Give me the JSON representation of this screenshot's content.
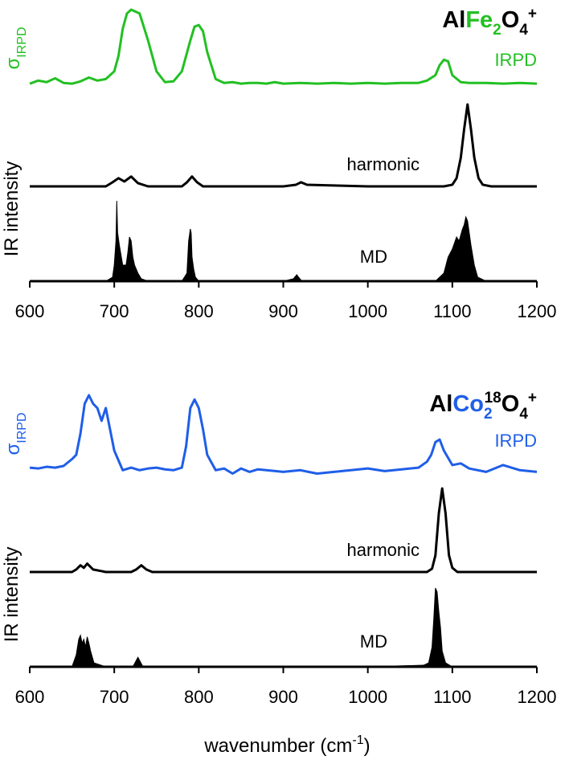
{
  "chart_data": [
    {
      "type": "line",
      "title_parts": [
        "Al",
        "Fe",
        "2",
        "O",
        "4",
        "+"
      ],
      "ylabel_parts": [
        "σ",
        "IRPD"
      ],
      "ylabel": "IR intensity",
      "xlim": [
        600,
        1200
      ],
      "xticks": [
        600,
        700,
        800,
        900,
        1000,
        1100,
        1200
      ],
      "series": [
        {
          "name": "IRPD",
          "color": "#22c022",
          "style": "line",
          "x": [
            600,
            610,
            620,
            630,
            640,
            650,
            660,
            670,
            680,
            690,
            700,
            705,
            710,
            715,
            720,
            730,
            740,
            750,
            760,
            770,
            780,
            790,
            795,
            800,
            805,
            810,
            820,
            830,
            840,
            850,
            860,
            870,
            880,
            890,
            900,
            920,
            940,
            960,
            980,
            1000,
            1020,
            1040,
            1060,
            1070,
            1080,
            1085,
            1090,
            1095,
            1100,
            1110,
            1120,
            1140,
            1160,
            1180,
            1200
          ],
          "values": [
            0.04,
            0.08,
            0.06,
            0.11,
            0.05,
            0.04,
            0.07,
            0.12,
            0.08,
            0.1,
            0.2,
            0.4,
            0.75,
            0.95,
            1.0,
            0.95,
            0.6,
            0.2,
            0.06,
            0.07,
            0.2,
            0.6,
            0.78,
            0.8,
            0.72,
            0.45,
            0.1,
            0.05,
            0.06,
            0.04,
            0.05,
            0.05,
            0.04,
            0.06,
            0.04,
            0.05,
            0.04,
            0.05,
            0.04,
            0.05,
            0.04,
            0.05,
            0.05,
            0.08,
            0.15,
            0.28,
            0.35,
            0.33,
            0.15,
            0.06,
            0.05,
            0.05,
            0.04,
            0.05,
            0.04
          ]
        },
        {
          "name": "harmonic",
          "color": "#000000",
          "style": "line",
          "x": [
            600,
            690,
            698,
            705,
            712,
            720,
            728,
            740,
            780,
            786,
            792,
            798,
            805,
            900,
            915,
            921,
            928,
            1000,
            1090,
            1100,
            1105,
            1110,
            1114,
            1118,
            1122,
            1126,
            1131,
            1136,
            1146,
            1200
          ],
          "values": [
            0,
            0,
            0.05,
            0.1,
            0.06,
            0.12,
            0.04,
            0,
            0,
            0.05,
            0.12,
            0.05,
            0,
            0,
            0.02,
            0.05,
            0.02,
            0,
            0,
            0.02,
            0.1,
            0.35,
            0.7,
            1.0,
            0.7,
            0.35,
            0.1,
            0.02,
            0,
            0
          ]
        },
        {
          "name": "MD",
          "color": "#000000",
          "style": "area",
          "x": [
            600,
            690,
            698,
            700,
            702,
            703,
            704,
            706,
            710,
            714,
            716,
            718,
            720,
            722,
            724,
            728,
            732,
            740,
            780,
            786,
            788,
            790,
            791,
            792,
            794,
            796,
            800,
            900,
            912,
            916,
            918,
            922,
            1000,
            1080,
            1090,
            1095,
            1100,
            1105,
            1108,
            1112,
            1114,
            1116,
            1118,
            1120,
            1122,
            1126,
            1130,
            1140,
            1200
          ],
          "values": [
            0,
            0,
            0.05,
            0.2,
            0.5,
            1.0,
            0.6,
            0.45,
            0.2,
            0.2,
            0.35,
            0.55,
            0.5,
            0.3,
            0.2,
            0.1,
            0.03,
            0,
            0,
            0.1,
            0.5,
            0.65,
            0.6,
            0.3,
            0.15,
            0.05,
            0,
            0,
            0.03,
            0.08,
            0.05,
            0,
            0,
            0,
            0.1,
            0.3,
            0.4,
            0.55,
            0.5,
            0.65,
            0.7,
            0.8,
            0.75,
            0.6,
            0.45,
            0.2,
            0.05,
            0,
            0
          ]
        }
      ]
    },
    {
      "type": "line",
      "title_parts": [
        "Al",
        "Co",
        "2",
        "18",
        "O",
        "4",
        "+"
      ],
      "ylabel_parts": [
        "σ",
        "IRPD"
      ],
      "ylabel": "IR intensity",
      "xlabel_parts": [
        "wavenumber (cm",
        "-1",
        ")"
      ],
      "xlim": [
        600,
        1200
      ],
      "xticks": [
        600,
        700,
        800,
        900,
        1000,
        1100,
        1200
      ],
      "series": [
        {
          "name": "IRPD",
          "color": "#1f5ee8",
          "style": "line",
          "x": [
            600,
            610,
            620,
            630,
            640,
            650,
            655,
            660,
            665,
            670,
            675,
            680,
            685,
            690,
            695,
            700,
            710,
            720,
            730,
            740,
            750,
            760,
            770,
            780,
            785,
            790,
            795,
            800,
            805,
            810,
            820,
            830,
            840,
            850,
            860,
            870,
            880,
            900,
            920,
            940,
            960,
            980,
            1000,
            1020,
            1040,
            1060,
            1070,
            1075,
            1080,
            1085,
            1090,
            1100,
            1110,
            1120,
            1140,
            1160,
            1180,
            1200
          ],
          "values": [
            0.15,
            0.14,
            0.16,
            0.15,
            0.17,
            0.25,
            0.3,
            0.55,
            0.9,
            1.0,
            0.9,
            0.85,
            0.7,
            0.85,
            0.6,
            0.35,
            0.12,
            0.15,
            0.12,
            0.14,
            0.15,
            0.13,
            0.12,
            0.15,
            0.4,
            0.85,
            0.95,
            0.85,
            0.6,
            0.3,
            0.12,
            0.14,
            0.08,
            0.14,
            0.1,
            0.13,
            0.12,
            0.1,
            0.12,
            0.08,
            0.1,
            0.12,
            0.14,
            0.11,
            0.13,
            0.15,
            0.22,
            0.3,
            0.45,
            0.48,
            0.35,
            0.18,
            0.2,
            0.14,
            0.1,
            0.18,
            0.12,
            0.1
          ]
        },
        {
          "name": "harmonic",
          "color": "#000000",
          "style": "line",
          "x": [
            600,
            650,
            655,
            660,
            664,
            668,
            675,
            690,
            720,
            726,
            732,
            738,
            745,
            1000,
            1070,
            1076,
            1080,
            1084,
            1088,
            1092,
            1096,
            1100,
            1106,
            1200
          ],
          "values": [
            0,
            0,
            0.03,
            0.08,
            0.05,
            0.1,
            0.03,
            0,
            0,
            0.03,
            0.08,
            0.03,
            0,
            0,
            0,
            0.04,
            0.2,
            0.7,
            1.0,
            0.7,
            0.2,
            0.05,
            0,
            0
          ]
        },
        {
          "name": "MD",
          "color": "#000000",
          "style": "area",
          "x": [
            600,
            650,
            655,
            658,
            660,
            662,
            664,
            666,
            668,
            670,
            672,
            676,
            690,
            722,
            726,
            728,
            730,
            734,
            1000,
            1066,
            1072,
            1076,
            1078,
            1080,
            1082,
            1084,
            1086,
            1088,
            1092,
            1100,
            1200
          ],
          "values": [
            0,
            0,
            0.15,
            0.35,
            0.4,
            0.3,
            0.35,
            0.25,
            0.38,
            0.3,
            0.2,
            0.05,
            0,
            0,
            0.08,
            0.12,
            0.08,
            0,
            0,
            0.02,
            0.05,
            0.25,
            0.6,
            1.0,
            0.95,
            0.7,
            0.5,
            0.2,
            0.05,
            0,
            0
          ]
        }
      ]
    }
  ]
}
